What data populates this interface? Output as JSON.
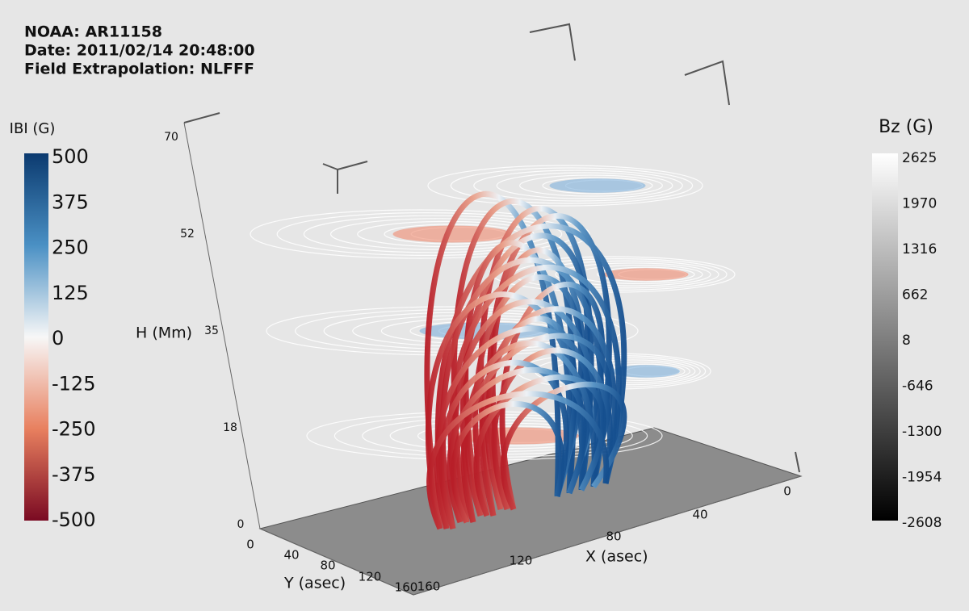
{
  "header": {
    "lines": [
      "NOAA: AR11158",
      "Date: 2011/02/14 20:48:00",
      "Field Extrapolation: NLFFF"
    ]
  },
  "left_colorbar": {
    "title": "IBI (G)",
    "ticks": [
      500,
      375,
      250,
      125,
      0,
      -125,
      -250,
      -375,
      -500
    ]
  },
  "right_colorbar": {
    "title": "Bz (G)",
    "ticks": [
      2625,
      1970,
      1316,
      662,
      8,
      -646,
      -1300,
      -1954,
      -2608
    ]
  },
  "axes": {
    "h": {
      "label": "H (Mm)",
      "ticks": [
        0,
        18,
        35,
        52,
        70
      ]
    },
    "y": {
      "label": "Y (asec)",
      "ticks": [
        0,
        40,
        80,
        120,
        160
      ]
    },
    "x": {
      "label": "X (asec)",
      "ticks": [
        0,
        40,
        80,
        120,
        160
      ]
    }
  }
}
